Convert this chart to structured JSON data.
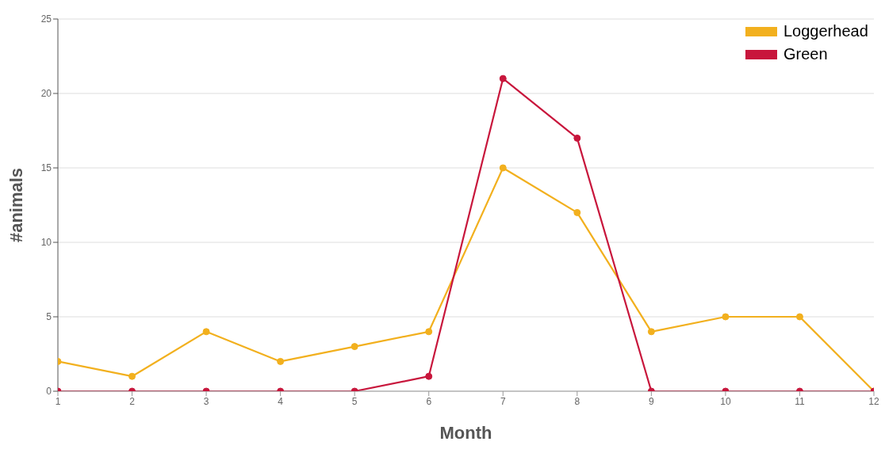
{
  "chart_data": {
    "type": "line",
    "xlabel": "Month",
    "ylabel": "#animals",
    "x": [
      1,
      2,
      3,
      4,
      5,
      6,
      7,
      8,
      9,
      10,
      11,
      12
    ],
    "series": [
      {
        "name": "Loggerhead",
        "color": "#f2b01e",
        "values": [
          2,
          1,
          4,
          2,
          3,
          4,
          15,
          12,
          4,
          5,
          5,
          0
        ]
      },
      {
        "name": "Green",
        "color": "#c8163c",
        "values": [
          0,
          0,
          0,
          0,
          0,
          1,
          21,
          17,
          0,
          0,
          0,
          0
        ]
      }
    ],
    "xlim": [
      1,
      12
    ],
    "xticks": [
      1,
      2,
      3,
      4,
      5,
      6,
      7,
      8,
      9,
      10,
      11,
      12
    ],
    "ylim": [
      0,
      25
    ],
    "yticks": [
      0,
      5,
      10,
      15,
      20,
      25
    ],
    "grid": "y",
    "legend": "top right",
    "marker": "circle",
    "line_style": "solid"
  }
}
